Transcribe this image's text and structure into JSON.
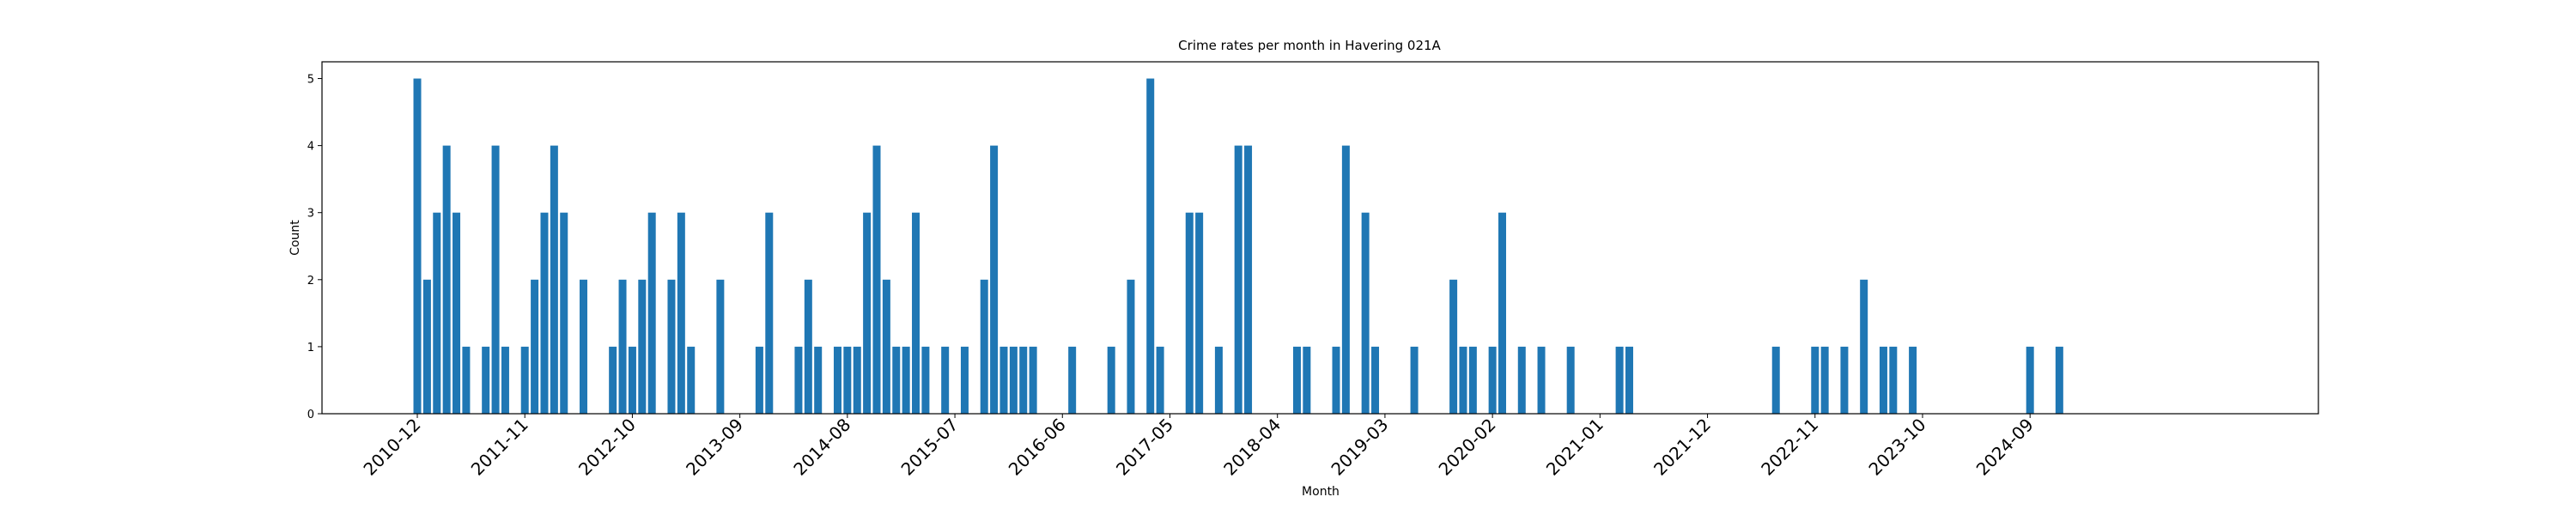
{
  "chart_data": {
    "type": "bar",
    "title": "Crime rates per month in Havering 021A",
    "xlabel": "Month",
    "ylabel": "Count",
    "ylim": [
      0,
      5.25
    ],
    "y_ticks": [
      0,
      1,
      2,
      3,
      4,
      5
    ],
    "x_tick_labels": [
      "2010-12",
      "2011-11",
      "2012-10",
      "2013-09",
      "2014-08",
      "2015-07",
      "2016-06",
      "2017-05",
      "2018-04",
      "2019-03",
      "2020-02",
      "2021-01",
      "2021-12",
      "2022-11",
      "2023-10",
      "2024-09"
    ],
    "bar_color": "#1f77b4",
    "grid": false,
    "legend": "none",
    "bars": [
      {
        "x": "2010-12",
        "y": 5
      },
      {
        "x": "2011-01",
        "y": 2
      },
      {
        "x": "2011-02",
        "y": 3
      },
      {
        "x": "2011-03",
        "y": 4
      },
      {
        "x": "2011-04",
        "y": 3
      },
      {
        "x": "2011-05",
        "y": 1
      },
      {
        "x": "2011-07",
        "y": 1
      },
      {
        "x": "2011-08",
        "y": 4
      },
      {
        "x": "2011-09",
        "y": 1
      },
      {
        "x": "2011-11",
        "y": 1
      },
      {
        "x": "2011-12",
        "y": 2
      },
      {
        "x": "2012-01",
        "y": 3
      },
      {
        "x": "2012-02",
        "y": 4
      },
      {
        "x": "2012-03",
        "y": 3
      },
      {
        "x": "2012-05",
        "y": 2
      },
      {
        "x": "2012-08",
        "y": 1
      },
      {
        "x": "2012-09",
        "y": 2
      },
      {
        "x": "2012-10",
        "y": 1
      },
      {
        "x": "2012-11",
        "y": 2
      },
      {
        "x": "2012-12",
        "y": 3
      },
      {
        "x": "2013-02",
        "y": 2
      },
      {
        "x": "2013-03",
        "y": 3
      },
      {
        "x": "2013-04",
        "y": 1
      },
      {
        "x": "2013-07",
        "y": 2
      },
      {
        "x": "2013-11",
        "y": 1
      },
      {
        "x": "2013-12",
        "y": 3
      },
      {
        "x": "2014-03",
        "y": 1
      },
      {
        "x": "2014-04",
        "y": 2
      },
      {
        "x": "2014-05",
        "y": 1
      },
      {
        "x": "2014-07",
        "y": 1
      },
      {
        "x": "2014-08",
        "y": 1
      },
      {
        "x": "2014-09",
        "y": 1
      },
      {
        "x": "2014-10",
        "y": 3
      },
      {
        "x": "2014-11",
        "y": 4
      },
      {
        "x": "2014-12",
        "y": 2
      },
      {
        "x": "2015-01",
        "y": 1
      },
      {
        "x": "2015-02",
        "y": 1
      },
      {
        "x": "2015-03",
        "y": 3
      },
      {
        "x": "2015-04",
        "y": 1
      },
      {
        "x": "2015-06",
        "y": 1
      },
      {
        "x": "2015-08",
        "y": 1
      },
      {
        "x": "2015-10",
        "y": 2
      },
      {
        "x": "2015-11",
        "y": 4
      },
      {
        "x": "2015-12",
        "y": 1
      },
      {
        "x": "2016-01",
        "y": 1
      },
      {
        "x": "2016-02",
        "y": 1
      },
      {
        "x": "2016-03",
        "y": 1
      },
      {
        "x": "2016-07",
        "y": 1
      },
      {
        "x": "2016-11",
        "y": 1
      },
      {
        "x": "2017-01",
        "y": 2
      },
      {
        "x": "2017-03",
        "y": 5
      },
      {
        "x": "2017-04",
        "y": 1
      },
      {
        "x": "2017-07",
        "y": 3
      },
      {
        "x": "2017-08",
        "y": 3
      },
      {
        "x": "2017-10",
        "y": 1
      },
      {
        "x": "2017-12",
        "y": 4
      },
      {
        "x": "2018-01",
        "y": 4
      },
      {
        "x": "2018-06",
        "y": 1
      },
      {
        "x": "2018-07",
        "y": 1
      },
      {
        "x": "2018-10",
        "y": 1
      },
      {
        "x": "2018-11",
        "y": 4
      },
      {
        "x": "2019-01",
        "y": 3
      },
      {
        "x": "2019-02",
        "y": 1
      },
      {
        "x": "2019-06",
        "y": 1
      },
      {
        "x": "2019-10",
        "y": 2
      },
      {
        "x": "2019-11",
        "y": 1
      },
      {
        "x": "2019-12",
        "y": 1
      },
      {
        "x": "2020-02",
        "y": 1
      },
      {
        "x": "2020-03",
        "y": 3
      },
      {
        "x": "2020-05",
        "y": 1
      },
      {
        "x": "2020-07",
        "y": 1
      },
      {
        "x": "2020-10",
        "y": 1
      },
      {
        "x": "2021-03",
        "y": 1
      },
      {
        "x": "2021-04",
        "y": 1
      },
      {
        "x": "2022-07",
        "y": 1
      },
      {
        "x": "2022-11",
        "y": 1
      },
      {
        "x": "2022-12",
        "y": 1
      },
      {
        "x": "2023-02",
        "y": 1
      },
      {
        "x": "2023-04",
        "y": 2
      },
      {
        "x": "2023-06",
        "y": 1
      },
      {
        "x": "2023-07",
        "y": 1
      },
      {
        "x": "2023-09",
        "y": 1
      },
      {
        "x": "2024-09",
        "y": 1
      },
      {
        "x": "2024-12",
        "y": 1
      }
    ]
  }
}
